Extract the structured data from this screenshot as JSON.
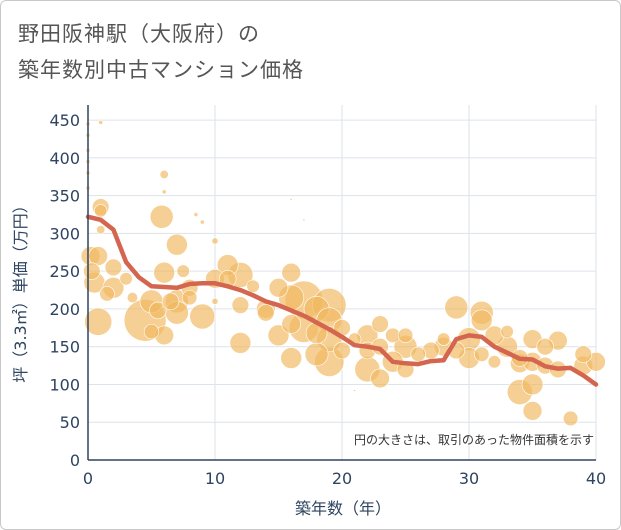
{
  "title_lines": [
    "野田阪神駅（大阪府）の",
    "築年数別中古マンション価格"
  ],
  "chart_data": {
    "type": "scatter",
    "title": "野田阪神駅（大阪府）の築年数別中古マンション価格",
    "xlabel": "築年数（年）",
    "ylabel": "坪（3.3㎡）単価（万円）",
    "xlim": [
      0,
      40
    ],
    "ylim": [
      0,
      470
    ],
    "x_ticks": [
      0,
      10,
      20,
      30,
      40
    ],
    "y_ticks": [
      0,
      50,
      100,
      150,
      200,
      250,
      300,
      350,
      400,
      450
    ],
    "grid": true,
    "note": "円の大きさは、取引のあった物件面積を示す",
    "colors": {
      "bubble": "#f0b860",
      "trend": "#d4654f",
      "grid": "#dde3ea",
      "axis": "#2e4460"
    },
    "series": [
      {
        "kind": "bubbles",
        "points": [
          {
            "x": 0,
            "y": 445,
            "s": 2
          },
          {
            "x": 0,
            "y": 430,
            "s": 2
          },
          {
            "x": 0,
            "y": 410,
            "s": 2
          },
          {
            "x": 0,
            "y": 395,
            "s": 2
          },
          {
            "x": 0,
            "y": 380,
            "s": 2
          },
          {
            "x": 0,
            "y": 360,
            "s": 2
          },
          {
            "x": 0.2,
            "y": 270,
            "s": 9
          },
          {
            "x": 0.3,
            "y": 250,
            "s": 8
          },
          {
            "x": 0.5,
            "y": 235,
            "s": 10
          },
          {
            "x": 0.8,
            "y": 270,
            "s": 9
          },
          {
            "x": 1,
            "y": 330,
            "s": 6
          },
          {
            "x": 1,
            "y": 335,
            "s": 8
          },
          {
            "x": 1,
            "y": 447,
            "s": 2
          },
          {
            "x": 1,
            "y": 305,
            "s": 4
          },
          {
            "x": 0.8,
            "y": 183,
            "s": 13
          },
          {
            "x": 1.5,
            "y": 220,
            "s": 7
          },
          {
            "x": 2,
            "y": 255,
            "s": 8
          },
          {
            "x": 2,
            "y": 228,
            "s": 10
          },
          {
            "x": 3,
            "y": 240,
            "s": 6
          },
          {
            "x": 3.5,
            "y": 215,
            "s": 5
          },
          {
            "x": 4.5,
            "y": 185,
            "s": 20
          },
          {
            "x": 5,
            "y": 210,
            "s": 11
          },
          {
            "x": 5,
            "y": 170,
            "s": 7
          },
          {
            "x": 5.5,
            "y": 198,
            "s": 8
          },
          {
            "x": 5.8,
            "y": 322,
            "s": 11
          },
          {
            "x": 6,
            "y": 248,
            "s": 10
          },
          {
            "x": 6,
            "y": 165,
            "s": 9
          },
          {
            "x": 6,
            "y": 378,
            "s": 4
          },
          {
            "x": 6,
            "y": 355,
            "s": 2
          },
          {
            "x": 6.5,
            "y": 210,
            "s": 8
          },
          {
            "x": 7,
            "y": 285,
            "s": 10
          },
          {
            "x": 7,
            "y": 210,
            "s": 11
          },
          {
            "x": 7,
            "y": 195,
            "s": 11
          },
          {
            "x": 7.5,
            "y": 250,
            "s": 6
          },
          {
            "x": 8,
            "y": 228,
            "s": 8
          },
          {
            "x": 8,
            "y": 215,
            "s": 7
          },
          {
            "x": 8.5,
            "y": 325,
            "s": 2
          },
          {
            "x": 9,
            "y": 190,
            "s": 12
          },
          {
            "x": 9,
            "y": 315,
            "s": 2
          },
          {
            "x": 10,
            "y": 290,
            "s": 3
          },
          {
            "x": 10,
            "y": 240,
            "s": 9
          },
          {
            "x": 10,
            "y": 210,
            "s": 3
          },
          {
            "x": 11,
            "y": 258,
            "s": 10
          },
          {
            "x": 11,
            "y": 240,
            "s": 8
          },
          {
            "x": 12,
            "y": 245,
            "s": 12
          },
          {
            "x": 12,
            "y": 205,
            "s": 8
          },
          {
            "x": 12,
            "y": 155,
            "s": 10
          },
          {
            "x": 13,
            "y": 230,
            "s": 6
          },
          {
            "x": 14,
            "y": 200,
            "s": 9
          },
          {
            "x": 14,
            "y": 195,
            "s": 8
          },
          {
            "x": 15,
            "y": 165,
            "s": 10
          },
          {
            "x": 15,
            "y": 228,
            "s": 9
          },
          {
            "x": 16,
            "y": 248,
            "s": 9
          },
          {
            "x": 16,
            "y": 215,
            "s": 12
          },
          {
            "x": 16,
            "y": 180,
            "s": 9
          },
          {
            "x": 16,
            "y": 135,
            "s": 10
          },
          {
            "x": 16,
            "y": 345,
            "s": 1
          },
          {
            "x": 17,
            "y": 212,
            "s": 18
          },
          {
            "x": 17,
            "y": 175,
            "s": 14
          },
          {
            "x": 17,
            "y": 318,
            "s": 1
          },
          {
            "x": 18,
            "y": 200,
            "s": 12
          },
          {
            "x": 18,
            "y": 168,
            "s": 10
          },
          {
            "x": 18,
            "y": 140,
            "s": 11
          },
          {
            "x": 19,
            "y": 205,
            "s": 16
          },
          {
            "x": 19,
            "y": 185,
            "s": 12
          },
          {
            "x": 19,
            "y": 160,
            "s": 12
          },
          {
            "x": 19,
            "y": 130,
            "s": 14
          },
          {
            "x": 20,
            "y": 175,
            "s": 8
          },
          {
            "x": 20,
            "y": 145,
            "s": 8
          },
          {
            "x": 21,
            "y": 160,
            "s": 6
          },
          {
            "x": 21,
            "y": 92,
            "s": 1
          },
          {
            "x": 22,
            "y": 165,
            "s": 10
          },
          {
            "x": 22,
            "y": 145,
            "s": 8
          },
          {
            "x": 22,
            "y": 120,
            "s": 12
          },
          {
            "x": 23,
            "y": 180,
            "s": 8
          },
          {
            "x": 23,
            "y": 150,
            "s": 8
          },
          {
            "x": 23,
            "y": 108,
            "s": 9
          },
          {
            "x": 24,
            "y": 165,
            "s": 7
          },
          {
            "x": 24,
            "y": 130,
            "s": 10
          },
          {
            "x": 25,
            "y": 165,
            "s": 7
          },
          {
            "x": 25,
            "y": 150,
            "s": 11
          },
          {
            "x": 25,
            "y": 120,
            "s": 8
          },
          {
            "x": 26,
            "y": 140,
            "s": 7
          },
          {
            "x": 27,
            "y": 145,
            "s": 8
          },
          {
            "x": 28,
            "y": 160,
            "s": 6
          },
          {
            "x": 28,
            "y": 150,
            "s": 9
          },
          {
            "x": 29,
            "y": 202,
            "s": 11
          },
          {
            "x": 29,
            "y": 145,
            "s": 8
          },
          {
            "x": 30,
            "y": 160,
            "s": 11
          },
          {
            "x": 30,
            "y": 135,
            "s": 10
          },
          {
            "x": 31,
            "y": 195,
            "s": 11
          },
          {
            "x": 31,
            "y": 185,
            "s": 10
          },
          {
            "x": 31,
            "y": 140,
            "s": 7
          },
          {
            "x": 32,
            "y": 165,
            "s": 9
          },
          {
            "x": 32,
            "y": 130,
            "s": 6
          },
          {
            "x": 33,
            "y": 170,
            "s": 6
          },
          {
            "x": 33,
            "y": 150,
            "s": 10
          },
          {
            "x": 34,
            "y": 135,
            "s": 8
          },
          {
            "x": 34,
            "y": 128,
            "s": 9
          },
          {
            "x": 34,
            "y": 90,
            "s": 12
          },
          {
            "x": 35,
            "y": 160,
            "s": 9
          },
          {
            "x": 35,
            "y": 130,
            "s": 9
          },
          {
            "x": 35,
            "y": 100,
            "s": 10
          },
          {
            "x": 35,
            "y": 65,
            "s": 9
          },
          {
            "x": 36,
            "y": 150,
            "s": 8
          },
          {
            "x": 36,
            "y": 125,
            "s": 8
          },
          {
            "x": 37,
            "y": 158,
            "s": 9
          },
          {
            "x": 37,
            "y": 120,
            "s": 8
          },
          {
            "x": 38,
            "y": 55,
            "s": 7
          },
          {
            "x": 39,
            "y": 140,
            "s": 8
          },
          {
            "x": 39,
            "y": 125,
            "s": 9
          },
          {
            "x": 40,
            "y": 130,
            "s": 9
          }
        ]
      },
      {
        "kind": "trend",
        "points": [
          {
            "x": 0,
            "y": 322
          },
          {
            "x": 1,
            "y": 318
          },
          {
            "x": 2,
            "y": 305
          },
          {
            "x": 3,
            "y": 262
          },
          {
            "x": 4,
            "y": 242
          },
          {
            "x": 5,
            "y": 230
          },
          {
            "x": 6,
            "y": 229
          },
          {
            "x": 7,
            "y": 228
          },
          {
            "x": 8,
            "y": 233
          },
          {
            "x": 9,
            "y": 234
          },
          {
            "x": 10,
            "y": 234
          },
          {
            "x": 11,
            "y": 230
          },
          {
            "x": 12,
            "y": 225
          },
          {
            "x": 13,
            "y": 218
          },
          {
            "x": 14,
            "y": 210
          },
          {
            "x": 15,
            "y": 205
          },
          {
            "x": 16,
            "y": 198
          },
          {
            "x": 17,
            "y": 191
          },
          {
            "x": 18,
            "y": 182
          },
          {
            "x": 19,
            "y": 173
          },
          {
            "x": 20,
            "y": 163
          },
          {
            "x": 21,
            "y": 152
          },
          {
            "x": 22,
            "y": 150
          },
          {
            "x": 23,
            "y": 147
          },
          {
            "x": 24,
            "y": 130
          },
          {
            "x": 25,
            "y": 128
          },
          {
            "x": 26,
            "y": 127
          },
          {
            "x": 27,
            "y": 131
          },
          {
            "x": 28,
            "y": 132
          },
          {
            "x": 29,
            "y": 160
          },
          {
            "x": 30,
            "y": 165
          },
          {
            "x": 31,
            "y": 163
          },
          {
            "x": 32,
            "y": 150
          },
          {
            "x": 33,
            "y": 142
          },
          {
            "x": 34,
            "y": 134
          },
          {
            "x": 35,
            "y": 133
          },
          {
            "x": 36,
            "y": 124
          },
          {
            "x": 37,
            "y": 121
          },
          {
            "x": 38,
            "y": 122
          },
          {
            "x": 39,
            "y": 112
          },
          {
            "x": 40,
            "y": 100
          }
        ]
      }
    ]
  }
}
